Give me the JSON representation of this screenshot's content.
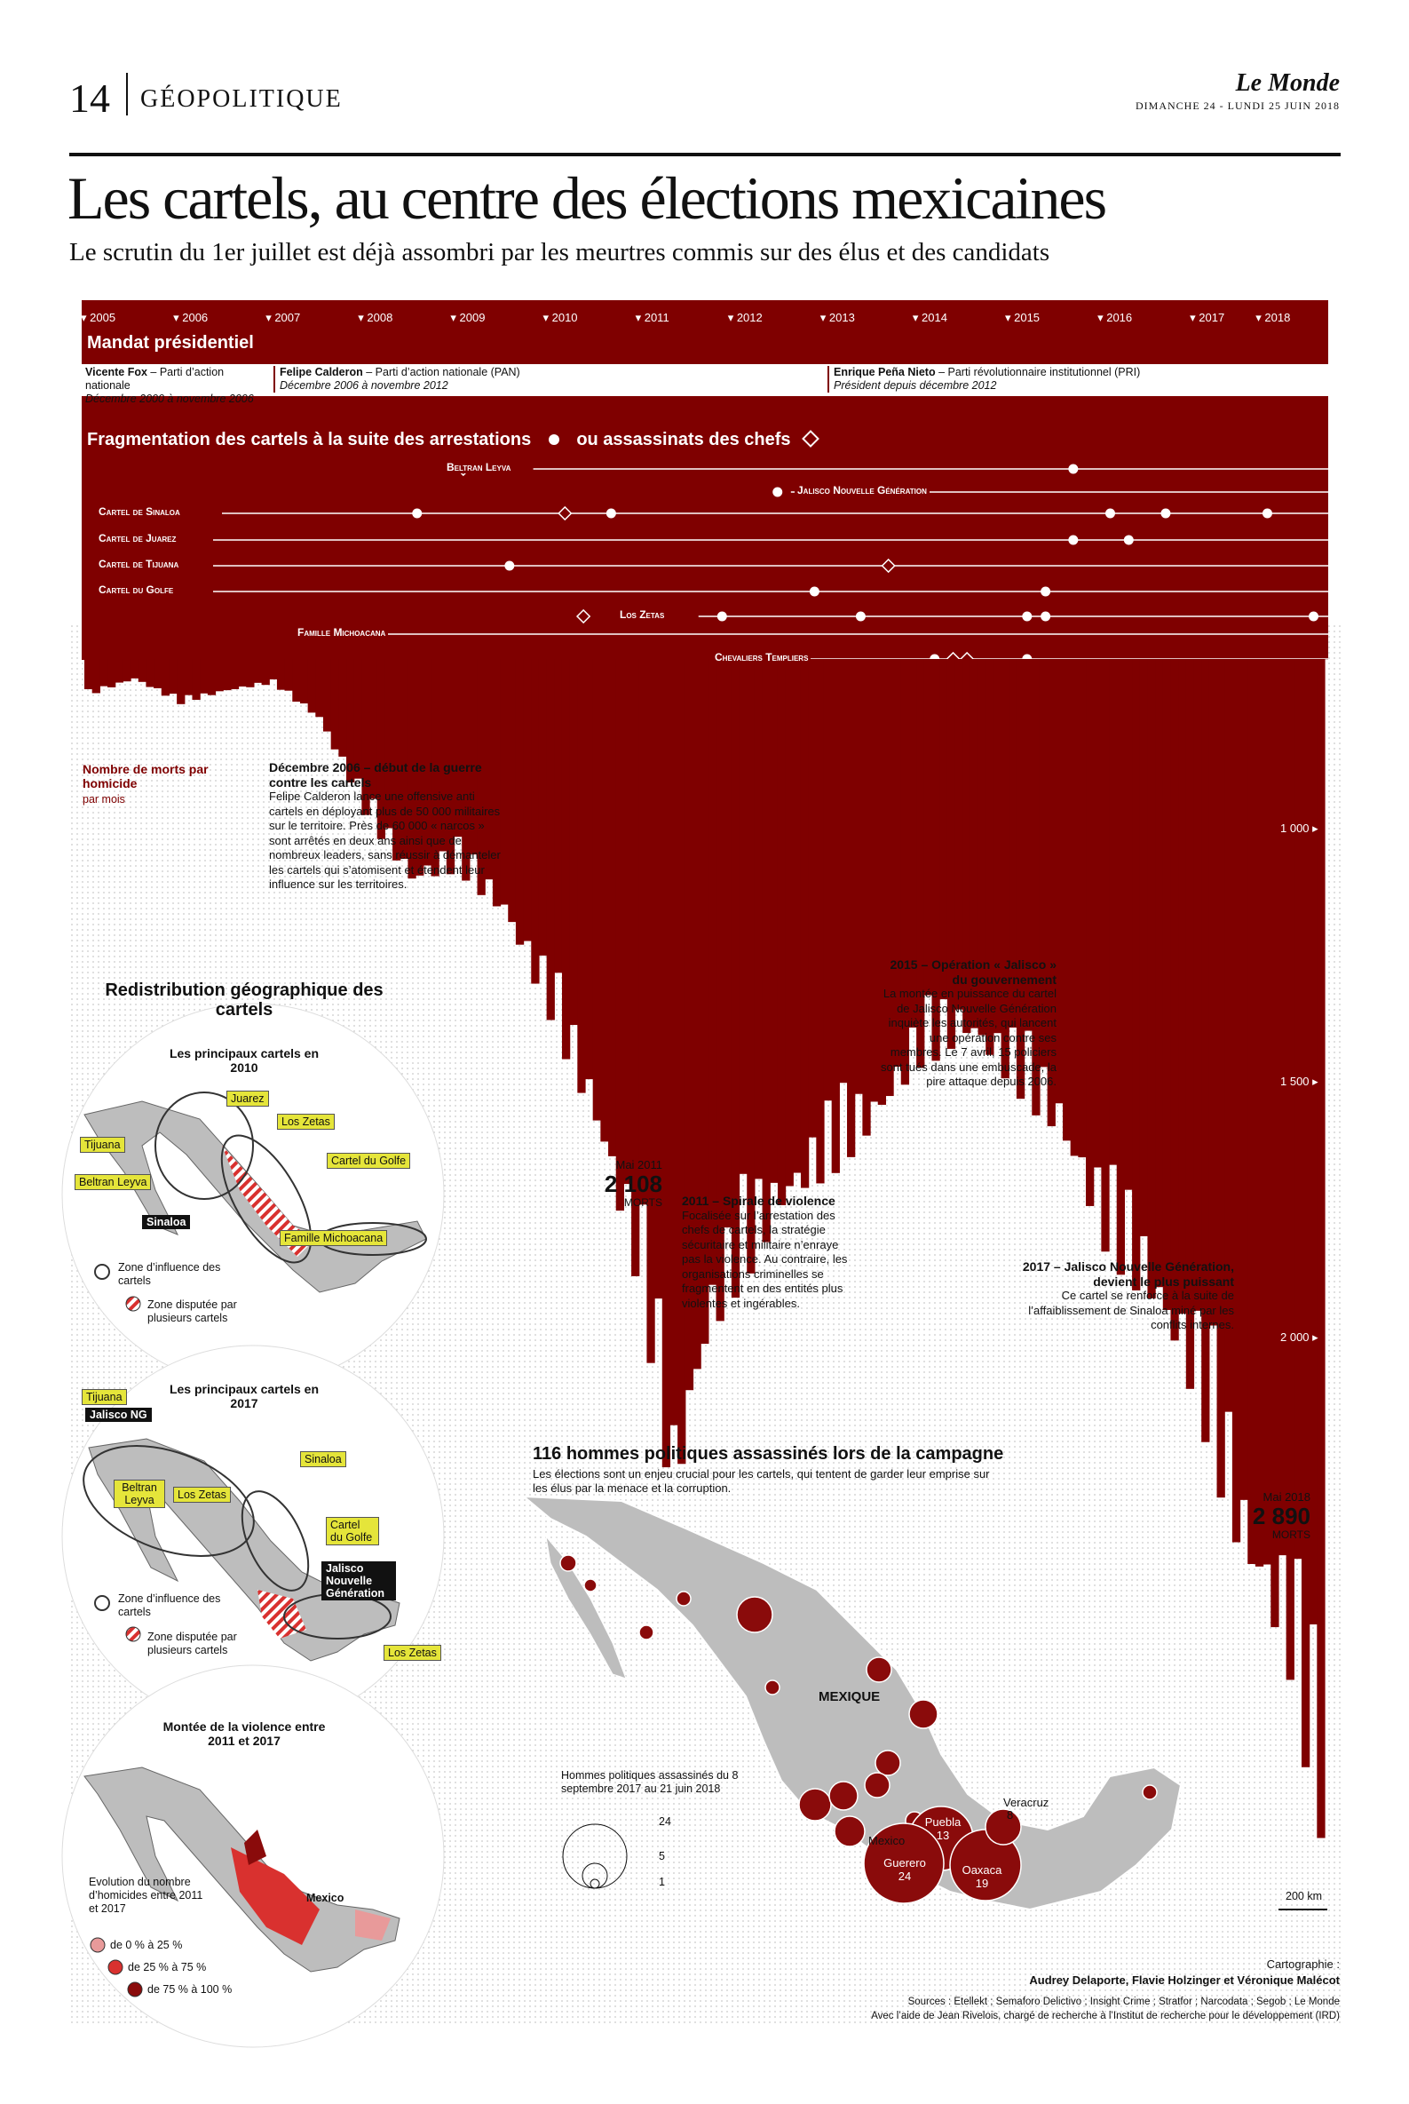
{
  "header": {
    "page_number": "14",
    "section": "GÉOPOLITIQUE",
    "logo": "Le Monde",
    "dateline": "DIMANCHE 24 - LUNDI 25 JUIN 2018"
  },
  "headline": "Les cartels, au centre des élections mexicaines",
  "subheadline": "Le scrutin du 1er juillet est déjà assombri par les meurtres commis sur des élus et des candidats",
  "timeline": {
    "years": [
      "2005",
      "2006",
      "2007",
      "2008",
      "2009",
      "2010",
      "2011",
      "2012",
      "2013",
      "2014",
      "2015",
      "2016",
      "2017",
      "2018"
    ],
    "mandat_title": "Mandat présidentiel",
    "presidents": [
      {
        "name": "Vicente Fox",
        "party": " – Parti d’action nationale",
        "term": "Décembre  2000 à novembre 2006"
      },
      {
        "name": "Felipe Calderon",
        "party": " – Parti d’action nationale (PAN)",
        "term": "Décembre 2006 à novembre 2012"
      },
      {
        "name": "Enrique Peña Nieto",
        "party": " – Parti révolutionnaire institutionnel (PRI)",
        "term": "Président depuis décembre 2012"
      }
    ],
    "fragmentation_title_a": "Fragmentation des cartels à la suite des arrestations",
    "fragmentation_title_b": "ou assassinats des chefs",
    "cartels": [
      "Beltran Leyva",
      "Jalisco Nouvelle Génération",
      "Cartel de Sinaloa",
      "Cartel de Juarez",
      "Cartel de Tijuana",
      "Cartel du Golfe",
      "Los Zetas",
      "Famille Michoacana",
      "Chevaliers Templiers"
    ]
  },
  "chart_data": {
    "type": "area",
    "title": "",
    "series": [
      {
        "name": "Nombre de morts par homicide",
        "unit": "par mois"
      }
    ],
    "legend_title": "Nombre de morts par homicide",
    "legend_sub": "par mois",
    "x_range": [
      "2005-01",
      "2018-05"
    ],
    "ylim": [
      0,
      3000
    ],
    "y_ticks": [
      {
        "value": 1000,
        "label": "1 000"
      },
      {
        "value": 1500,
        "label": "1 500"
      },
      {
        "value": 2000,
        "label": "2 000"
      }
    ],
    "inverted": true,
    "points": [
      {
        "year": 2005.0,
        "value": 90
      },
      {
        "year": 2005.5,
        "value": 50
      },
      {
        "year": 2006.0,
        "value": 110
      },
      {
        "year": 2006.5,
        "value": 80
      },
      {
        "year": 2007.0,
        "value": 60
      },
      {
        "year": 2007.5,
        "value": 150
      },
      {
        "year": 2008.0,
        "value": 380
      },
      {
        "year": 2008.5,
        "value": 560
      },
      {
        "year": 2009.0,
        "value": 520
      },
      {
        "year": 2009.5,
        "value": 640
      },
      {
        "year": 2010.0,
        "value": 880
      },
      {
        "year": 2010.5,
        "value": 1170
      },
      {
        "year": 2011.0,
        "value": 1580
      },
      {
        "year": 2011.33,
        "value": 2108
      },
      {
        "year": 2011.7,
        "value": 1700
      },
      {
        "year": 2012.0,
        "value": 1560
      },
      {
        "year": 2012.5,
        "value": 1380
      },
      {
        "year": 2013.0,
        "value": 1270
      },
      {
        "year": 2013.5,
        "value": 1170
      },
      {
        "year": 2014.0,
        "value": 1000
      },
      {
        "year": 2014.5,
        "value": 940
      },
      {
        "year": 2015.0,
        "value": 1050
      },
      {
        "year": 2015.5,
        "value": 1180
      },
      {
        "year": 2016.0,
        "value": 1450
      },
      {
        "year": 2016.5,
        "value": 1600
      },
      {
        "year": 2017.0,
        "value": 1840
      },
      {
        "year": 2017.5,
        "value": 2250
      },
      {
        "year": 2018.0,
        "value": 2500
      },
      {
        "year": 2018.33,
        "value": 2890
      }
    ],
    "callouts": [
      {
        "label": "Mai 2011",
        "value": "2 108",
        "unit": "MORTS"
      },
      {
        "label": "Mai 2018",
        "value": "2 890",
        "unit": "MORTS"
      }
    ]
  },
  "annotations": {
    "a2006_title": "Décembre 2006 – début de la guerre contre les cartels",
    "a2006_body": "Felipe Calderon lance une offensive anti cartels en déployant plus de 50 000 militaires sur le territoire. Près de 60 000 « narcos » sont arrêtés en deux ans ainsi que de nombreux leaders, sans réussir à démanteler les cartels qui s’atomisent et étendent leur influence sur les territoires.",
    "a2011_title": "2011 – Spirale de violence",
    "a2011_body": "Focalisée sur l’arrestation des chefs de cartels, la stratégie sécuritaire et militaire n’enraye pas la violence. Au contraire, les organisations criminelles se fragmentent en des entités plus violentes et ingérables.",
    "a2015_title": "2015 – Opération « Jalisco » du gouvernement",
    "a2015_body": "La montée en puissance du cartel de Jalisco Nouvelle Génération inquiète les autorités, qui lancent une opération contre ses membres. Le 7 avril, 15 policiers sont tués dans une embuscade, la pire attaque depuis 2006.",
    "a2017_title": "2017 – Jalisco Nouvelle Génération, devient le plus puissant",
    "a2017_body": "Ce cartel se renforce à la suite de l’affaiblissement de Sinaloa miné par les conflits internes."
  },
  "geo": {
    "title": "Redistribution géographique des cartels",
    "map2010_title": "Les principaux cartels en 2010",
    "map2010_labels": [
      "Juarez",
      "Los Zetas",
      "Tijuana",
      "Cartel du Golfe",
      "Beltran Leyva",
      "Sinaloa",
      "Famille Michoacana"
    ],
    "map2017_title": "Les principaux cartels en 2017",
    "map2017_labels": [
      "Tijuana",
      "Jalisco NG",
      "Sinaloa",
      "Beltran Leyva",
      "Los Zetas",
      "Cartel du Golfe",
      "Jalisco Nouvelle Génération",
      "Los Zetas"
    ],
    "legend_influence": "Zone d’influence des cartels",
    "legend_disputed": "Zone disputée par plusieurs cartels",
    "violence_title": "Montée de la violence entre 2011 et 2017",
    "violence_legend_title": "Evolution du nombre d’homicides entre 2011 et 2017",
    "violence_bins": [
      "de 0 % à 25 %",
      "de 25 % à 75 %",
      "de 75 %  à 100 %"
    ],
    "violence_bin_colors": [
      "#e89a9a",
      "#d9312f",
      "#8a0b0b"
    ],
    "violence_city": "Mexico"
  },
  "politicians": {
    "title": "116 hommes politiques assassinés lors de la campagne",
    "body": "Les élections sont un enjeu crucial pour les cartels, qui tentent de garder leur emprise sur les élus par la menace et la corruption.",
    "country": "MEXIQUE",
    "size_legend_title": "Hommes politiques assassinés du 8 septembre 2017 au 21 juin 2018",
    "size_legend_values": [
      "24",
      "5",
      "1"
    ],
    "states": [
      {
        "name": "Veracruz",
        "count": "8"
      },
      {
        "name": "Puebla",
        "count": "13"
      },
      {
        "name": "Mexico",
        "count": ""
      },
      {
        "name": "Guerero",
        "count": "24"
      },
      {
        "name": "Oaxaca",
        "count": "19"
      }
    ],
    "scale": "200 km"
  },
  "credits": {
    "carto_label": "Cartographie :",
    "authors": "Audrey Delaporte,  Flavie Holzinger  et Véronique Malécot",
    "sources": "Sources : Etellekt ; Semaforo Delictivo ; Insight Crime ; Stratfor ; Narcodata ; Segob ; Le Monde",
    "help": "Avec l’aide de Jean Rivelois, chargé de recherche à l’Institut de recherche pour le développement (IRD)"
  },
  "colors": {
    "accent": "#7f0000",
    "dark_red": "#8a0b0b",
    "map_grey": "#bdbdbd",
    "highlight": "#e5e53a"
  }
}
